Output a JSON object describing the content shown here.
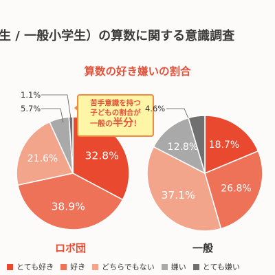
{
  "page": {
    "title": "生 / 一般小学生）の算数に関する意識調査",
    "subtitle": "算数の好き嫌いの割合"
  },
  "callout": {
    "line1": "苦手意識を持つ",
    "line2": "子どもの割合が",
    "line3_pre": "一般の",
    "line3_em": "半分",
    "line3_post": "！"
  },
  "chart_data": {
    "type": "pie",
    "title": "算数の好き嫌いの割合",
    "legend_position": "bottom",
    "categories": [
      "とても好き",
      "好き",
      "どちらでもない",
      "嫌い",
      "とても嫌い"
    ],
    "colors": [
      "#e8492f",
      "#ee7258",
      "#f3a58c",
      "#a9a9a9",
      "#707070"
    ],
    "series": [
      {
        "name": "ロボ団",
        "values": [
          32.8,
          38.9,
          21.6,
          5.7,
          1.1
        ],
        "labels": [
          "32.8%",
          "38.9%",
          "21.6%",
          "5.7%",
          "1.1%"
        ],
        "name_color": "#e8492f"
      },
      {
        "name": "一般",
        "values": [
          18.7,
          26.8,
          37.1,
          12.8,
          4.6
        ],
        "labels": [
          "18.7%",
          "26.8%",
          "37.1%",
          "12.8%",
          "4.6%"
        ],
        "name_color": "#333333"
      }
    ]
  }
}
